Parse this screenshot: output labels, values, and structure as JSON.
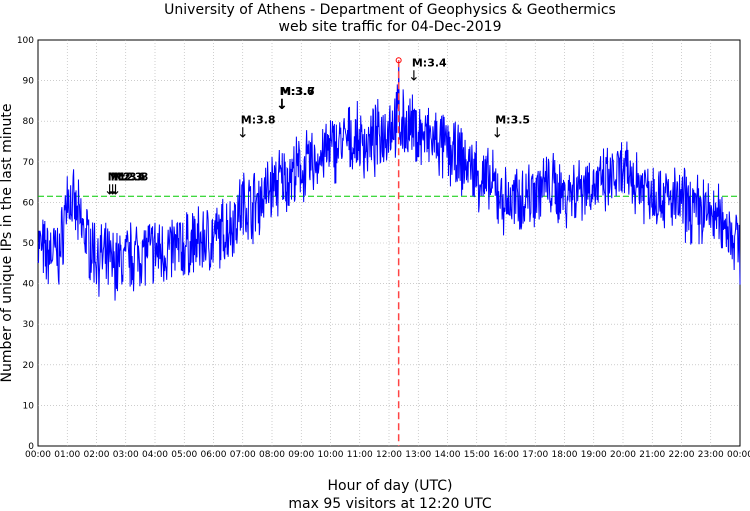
{
  "chart_data": {
    "type": "line",
    "title": "University of Athens - Department of Geophysics & Geothermics",
    "subtitle": "web site traffic for 04-Dec-2019",
    "xlabel": "Hour of day (UTC)",
    "subxlabel": "max 95 visitors at 12:20 UTC",
    "ylabel": "Number of unique IPs in the last minute",
    "xlim": [
      0,
      24
    ],
    "ylim": [
      0,
      100
    ],
    "yticks": [
      0,
      10,
      20,
      30,
      40,
      50,
      60,
      70,
      80,
      90,
      100
    ],
    "xticks": [
      "00:00",
      "01:00",
      "02:00",
      "03:00",
      "04:00",
      "05:00",
      "06:00",
      "07:00",
      "08:00",
      "09:00",
      "10:00",
      "11:00",
      "12:00",
      "13:00",
      "14:00",
      "15:00",
      "16:00",
      "17:00",
      "18:00",
      "19:00",
      "20:00",
      "21:00",
      "22:00",
      "23:00",
      "00:00"
    ],
    "grid": true,
    "mean_line": 61.5,
    "max": {
      "value": 95,
      "hour": 12.33,
      "label": "12:20"
    },
    "series": [
      {
        "name": "visitors",
        "color": "#0000ff",
        "x": [
          0,
          0.25,
          0.5,
          0.75,
          1,
          1.25,
          1.5,
          1.75,
          2,
          2.25,
          2.5,
          2.75,
          3,
          3.25,
          3.5,
          3.75,
          4,
          4.25,
          4.5,
          4.75,
          5,
          5.25,
          5.5,
          5.75,
          6,
          6.25,
          6.5,
          6.75,
          7,
          7.25,
          7.5,
          7.75,
          8,
          8.25,
          8.5,
          8.75,
          9,
          9.25,
          9.5,
          9.75,
          10,
          10.25,
          10.5,
          10.75,
          11,
          11.25,
          11.5,
          11.75,
          12,
          12.25,
          12.5,
          12.75,
          13,
          13.25,
          13.5,
          13.75,
          14,
          14.25,
          14.5,
          14.75,
          15,
          15.25,
          15.5,
          15.75,
          16,
          16.25,
          16.5,
          16.75,
          17,
          17.25,
          17.5,
          17.75,
          18,
          18.25,
          18.5,
          18.75,
          19,
          19.25,
          19.5,
          19.75,
          20,
          20.25,
          20.5,
          20.75,
          21,
          21.25,
          21.5,
          21.75,
          22,
          22.25,
          22.5,
          22.75,
          23,
          23.25,
          23.5,
          23.75,
          24
        ],
        "y": [
          50,
          47,
          48,
          47,
          62,
          58,
          54,
          50,
          47,
          46,
          45,
          45,
          46,
          47,
          48,
          48,
          48,
          48,
          48,
          49,
          49,
          50,
          50,
          51,
          51,
          52,
          54,
          56,
          60,
          59,
          60,
          62,
          64,
          65,
          66,
          67,
          68,
          69,
          70,
          72,
          73,
          74,
          75,
          75,
          75,
          74,
          75,
          77,
          79,
          80,
          79,
          78,
          77,
          76,
          75,
          74,
          73,
          71,
          70,
          69,
          67,
          65,
          64,
          62,
          60,
          60,
          61,
          62,
          63,
          64,
          64,
          63,
          62,
          63,
          64,
          65,
          64,
          64,
          65,
          66,
          67,
          66,
          65,
          64,
          63,
          62,
          61,
          60,
          60,
          59,
          58,
          58,
          57,
          56,
          55,
          52,
          49
        ]
      }
    ],
    "annotations": [
      {
        "label": "M:2.3",
        "hour": 2.45,
        "y": 62
      },
      {
        "label": "M:2.6",
        "hour": 2.55,
        "y": 62
      },
      {
        "label": "M:3.8",
        "hour": 2.65,
        "y": 62
      },
      {
        "label": "M:3.8",
        "hour": 7.0,
        "y": 76
      },
      {
        "label": "M:3.6",
        "hour": 8.33,
        "y": 83
      },
      {
        "label": "M:3.7",
        "hour": 8.35,
        "y": 83
      },
      {
        "label": "M:3.4",
        "hour": 12.85,
        "y": 90
      },
      {
        "label": "M:3.5",
        "hour": 15.7,
        "y": 76
      }
    ]
  }
}
